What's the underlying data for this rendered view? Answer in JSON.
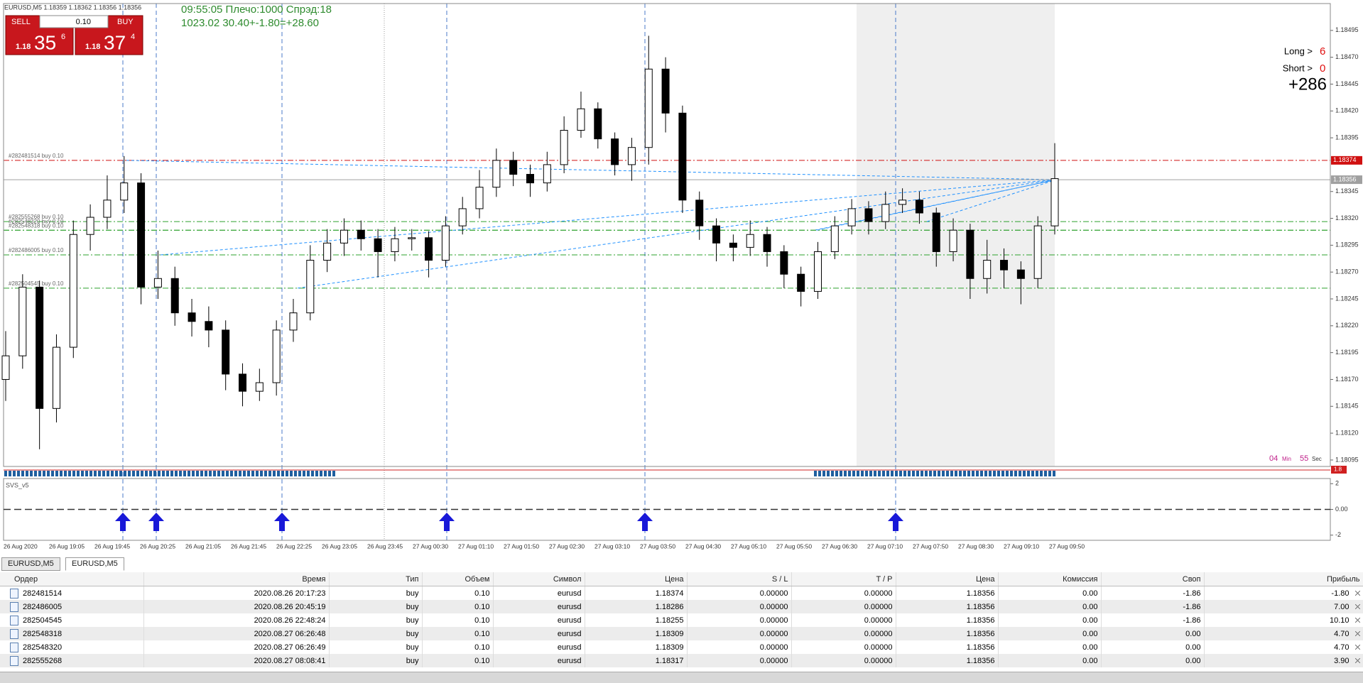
{
  "window": {
    "symbol_line": "EURUSD,M5  1.18359 1.18362 1.18356 1.18356"
  },
  "trade_panel": {
    "sell": "SELL",
    "buy": "BUY",
    "lot": "0.10",
    "sell_price": {
      "prefix": "1.18",
      "big": "35",
      "sup": "6"
    },
    "buy_price": {
      "prefix": "1.18",
      "big": "37",
      "sup": "4"
    }
  },
  "info": {
    "line1": "09:55:05 Плечо:1000 Спрэд:18",
    "line2": "1023.02   30.40+-1.80=+28.60"
  },
  "positions_panel": {
    "long_label": "Long >",
    "long_count": "6",
    "short_label": "Short >",
    "short_count": "0",
    "total": "+286"
  },
  "timer": {
    "min": "04",
    "min_label": "Min",
    "sec": "55",
    "sec_label": "Sec"
  },
  "chart": {
    "type": "candlestick",
    "ylim": [
      1.18089,
      1.1852
    ],
    "yticks": [
      1.18495,
      {
        "value": 1.1847,
        "label": "1.18470"
      },
      1.18445,
      {
        "value": 1.1842,
        "label": "1.18420"
      },
      1.18395,
      1.18345,
      {
        "value": 1.1832,
        "label": "1.18320"
      },
      1.18295,
      {
        "value": 1.1827,
        "label": "1.18270"
      },
      1.18245,
      {
        "value": 1.1822,
        "label": "1.18220"
      },
      1.18195,
      {
        "value": 1.1817,
        "label": "1.18170"
      },
      1.18145,
      {
        "value": 1.1812,
        "label": "1.18120"
      },
      1.18095
    ],
    "x_labels": [
      "26 Aug 2020",
      "26 Aug 19:05",
      "26 Aug 19:45",
      "26 Aug 20:25",
      "26 Aug 21:05",
      "26 Aug 21:45",
      "26 Aug 22:25",
      "26 Aug 23:05",
      "26 Aug 23:45",
      "27 Aug 00:30",
      "27 Aug 01:10",
      "27 Aug 01:50",
      "27 Aug 02:30",
      "27 Aug 03:10",
      "27 Aug 03:50",
      "27 Aug 04:30",
      "27 Aug 05:10",
      "27 Aug 05:50",
      "27 Aug 06:30",
      "27 Aug 07:10",
      "27 Aug 07:50",
      "27 Aug 08:30",
      "27 Aug 09:10",
      "27 Aug 09:50"
    ],
    "candles": [
      [
        1.1817,
        1.18215,
        1.1815,
        1.18192
      ],
      [
        1.18192,
        1.18268,
        1.1818,
        1.18256
      ],
      [
        1.18256,
        1.18262,
        1.18105,
        1.18143
      ],
      [
        1.18143,
        1.18212,
        1.1813,
        1.182
      ],
      [
        1.182,
        1.18318,
        1.1819,
        1.18305
      ],
      [
        1.18305,
        1.18333,
        1.1829,
        1.18321
      ],
      [
        1.18321,
        1.1836,
        1.1831,
        1.18337
      ],
      [
        1.18337,
        1.18378,
        1.18325,
        1.18353
      ],
      [
        1.18353,
        1.18362,
        1.1824,
        1.18256
      ],
      [
        1.18256,
        1.1829,
        1.18245,
        1.18264
      ],
      [
        1.18264,
        1.18275,
        1.1822,
        1.18232
      ],
      [
        1.18232,
        1.18245,
        1.1821,
        1.18224
      ],
      [
        1.18224,
        1.18238,
        1.182,
        1.18216
      ],
      [
        1.18216,
        1.18225,
        1.1816,
        1.18175
      ],
      [
        1.18175,
        1.18185,
        1.18145,
        1.18159
      ],
      [
        1.18159,
        1.1818,
        1.1815,
        1.18167
      ],
      [
        1.18167,
        1.18225,
        1.18155,
        1.18216
      ],
      [
        1.18216,
        1.18245,
        1.18205,
        1.18232
      ],
      [
        1.18232,
        1.18295,
        1.18225,
        1.18281
      ],
      [
        1.18281,
        1.1831,
        1.1827,
        1.18297
      ],
      [
        1.18297,
        1.1832,
        1.18285,
        1.18309
      ],
      [
        1.18309,
        1.18318,
        1.1829,
        1.18301
      ],
      [
        1.18301,
        1.1831,
        1.18265,
        1.18289
      ],
      [
        1.18289,
        1.18312,
        1.1828,
        1.18301
      ],
      [
        1.18301,
        1.1831,
        1.1829,
        1.18302
      ],
      [
        1.18302,
        1.18308,
        1.18265,
        1.18281
      ],
      [
        1.18281,
        1.18322,
        1.18275,
        1.18313
      ],
      [
        1.18313,
        1.1834,
        1.18305,
        1.18329
      ],
      [
        1.18329,
        1.18365,
        1.1832,
        1.18349
      ],
      [
        1.18349,
        1.18385,
        1.1834,
        1.18374
      ],
      [
        1.18374,
        1.18382,
        1.1835,
        1.18361
      ],
      [
        1.18361,
        1.1837,
        1.1834,
        1.18353
      ],
      [
        1.18353,
        1.18382,
        1.18345,
        1.1837
      ],
      [
        1.1837,
        1.18415,
        1.18362,
        1.18402
      ],
      [
        1.18402,
        1.18438,
        1.18395,
        1.18422
      ],
      [
        1.18422,
        1.18428,
        1.18385,
        1.18394
      ],
      [
        1.18394,
        1.184,
        1.1836,
        1.1837
      ],
      [
        1.1837,
        1.18395,
        1.18355,
        1.18386
      ],
      [
        1.18386,
        1.1849,
        1.1837,
        1.18459
      ],
      [
        1.18459,
        1.1847,
        1.184,
        1.18418
      ],
      [
        1.18418,
        1.18425,
        1.18325,
        1.18337
      ],
      [
        1.18337,
        1.18345,
        1.183,
        1.18313
      ],
      [
        1.18313,
        1.1832,
        1.1828,
        1.18297
      ],
      [
        1.18297,
        1.18305,
        1.1828,
        1.18293
      ],
      [
        1.18293,
        1.18318,
        1.18285,
        1.18305
      ],
      [
        1.18305,
        1.18312,
        1.18275,
        1.18289
      ],
      [
        1.18289,
        1.18295,
        1.18255,
        1.18268
      ],
      [
        1.18268,
        1.18275,
        1.18238,
        1.18252
      ],
      [
        1.18252,
        1.18298,
        1.18245,
        1.18289
      ],
      [
        1.18289,
        1.18322,
        1.18282,
        1.18313
      ],
      [
        1.18313,
        1.18338,
        1.18305,
        1.18329
      ],
      [
        1.18329,
        1.18336,
        1.18305,
        1.18317
      ],
      [
        1.18317,
        1.18345,
        1.1831,
        1.18333
      ],
      [
        1.18333,
        1.18348,
        1.18325,
        1.18337
      ],
      [
        1.18337,
        1.18345,
        1.18315,
        1.18325
      ],
      [
        1.18325,
        1.1833,
        1.18275,
        1.18289
      ],
      [
        1.18289,
        1.1832,
        1.1828,
        1.18309
      ],
      [
        1.18309,
        1.18315,
        1.18245,
        1.18264
      ],
      [
        1.18264,
        1.183,
        1.1825,
        1.18281
      ],
      [
        1.18281,
        1.18292,
        1.18255,
        1.18272
      ],
      [
        1.18272,
        1.1828,
        1.1824,
        1.18264
      ],
      [
        1.18264,
        1.18322,
        1.18255,
        1.18313
      ],
      [
        1.18313,
        1.1839,
        1.18305,
        1.18357
      ]
    ],
    "bid": 1.18356,
    "bid_color": "#a0a0a0",
    "order_lines": [
      {
        "label": "#282481514 buy 0.10",
        "value": 1.18374,
        "color": "#d01010"
      },
      {
        "label": "#282555268 buy 0.10",
        "value": 1.18317,
        "color": "#2ca02c"
      },
      {
        "label": "#282548318 buy 0.10",
        "value": 1.18309,
        "color": "#2ca02c"
      },
      {
        "label": "#282548320 buy 0.10",
        "value": 1.18309,
        "color": "#2ca02c"
      },
      {
        "label": "#282486005 buy 0.10",
        "value": 1.18286,
        "color": "#2ca02c"
      },
      {
        "label": "#282504545 buy 0.10",
        "value": 1.18255,
        "color": "#2ca02c"
      }
    ],
    "indicator": {
      "name": "SVS_v5",
      "ylim": [
        -2.4,
        2.4
      ],
      "yticks": [
        2,
        {
          "value": 0,
          "label": "0.00"
        },
        -2
      ],
      "tag": 1.8
    }
  },
  "tabs": [
    "EURUSD,M5",
    "EURUSD,M5"
  ],
  "table": {
    "columns": [
      "Ордер",
      "Время",
      "Тип",
      "Объем",
      "Символ",
      "Цена",
      "S / L",
      "T / P",
      "Цена",
      "Комиссия",
      "Своп",
      "Прибыль"
    ],
    "rows": [
      [
        "282481514",
        "2020.08.26 20:17:23",
        "buy",
        "0.10",
        "eurusd",
        "1.18374",
        "0.00000",
        "0.00000",
        "1.18356",
        "0.00",
        "-1.86",
        "-1.80"
      ],
      [
        "282486005",
        "2020.08.26 20:45:19",
        "buy",
        "0.10",
        "eurusd",
        "1.18286",
        "0.00000",
        "0.00000",
        "1.18356",
        "0.00",
        "-1.86",
        "7.00"
      ],
      [
        "282504545",
        "2020.08.26 22:48:24",
        "buy",
        "0.10",
        "eurusd",
        "1.18255",
        "0.00000",
        "0.00000",
        "1.18356",
        "0.00",
        "-1.86",
        "10.10"
      ],
      [
        "282548318",
        "2020.08.27 06:26:48",
        "buy",
        "0.10",
        "eurusd",
        "1.18309",
        "0.00000",
        "0.00000",
        "1.18356",
        "0.00",
        "0.00",
        "4.70"
      ],
      [
        "282548320",
        "2020.08.27 06:26:49",
        "buy",
        "0.10",
        "eurusd",
        "1.18309",
        "0.00000",
        "0.00000",
        "1.18356",
        "0.00",
        "0.00",
        "4.70"
      ],
      [
        "282555268",
        "2020.08.27 08:08:41",
        "buy",
        "0.10",
        "eurusd",
        "1.18317",
        "0.00000",
        "0.00000",
        "1.18356",
        "0.00",
        "0.00",
        "3.90"
      ]
    ]
  }
}
